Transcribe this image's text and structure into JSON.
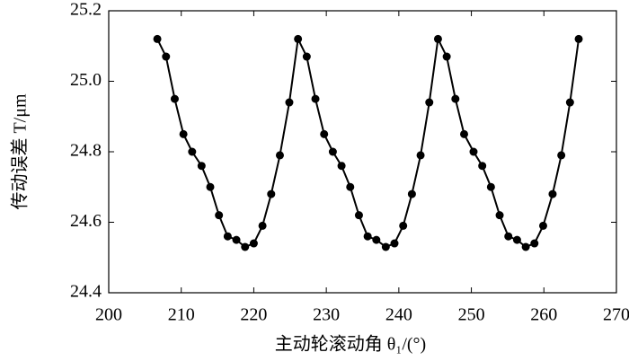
{
  "chart_data": {
    "type": "line",
    "xlabel": "主动轮滚动角 θ₁/(°)",
    "ylabel": "传动误差 T/μm",
    "xlim": [
      200,
      270
    ],
    "xticks": [
      200,
      210,
      220,
      230,
      240,
      250,
      260,
      270
    ],
    "ylim": [
      24.4,
      25.2
    ],
    "yticks": [
      24.4,
      24.6,
      24.8,
      {
        "value": 25.0,
        "label": "25.0"
      },
      25.2
    ],
    "x": [
      206.7,
      207.9,
      209.1,
      210.3,
      211.5,
      212.8,
      214.0,
      215.2,
      216.4,
      217.6,
      218.8,
      220.0,
      221.2,
      222.4,
      223.6,
      224.9,
      226.1,
      227.3,
      228.5,
      229.7,
      230.9,
      232.1,
      233.3,
      234.5,
      235.7,
      236.9,
      238.2,
      239.4,
      240.6,
      241.8,
      243.0,
      244.2,
      245.4,
      246.6,
      247.8,
      249.0,
      250.3,
      251.5,
      252.7,
      253.9,
      255.1,
      256.3,
      257.5,
      258.7,
      259.9,
      261.2,
      262.4,
      263.6,
      264.8
    ],
    "series": [
      {
        "color": "#000000",
        "values": [
          25.12,
          25.07,
          24.95,
          24.85,
          24.8,
          24.76,
          24.7,
          24.62,
          24.56,
          24.55,
          24.53,
          24.54,
          24.59,
          24.68,
          24.79,
          24.94,
          25.12,
          25.07,
          24.95,
          24.85,
          24.8,
          24.76,
          24.7,
          24.62,
          24.56,
          24.55,
          24.53,
          24.54,
          24.59,
          24.68,
          24.79,
          24.94,
          25.12,
          25.07,
          24.95,
          24.85,
          24.8,
          24.76,
          24.7,
          24.62,
          24.56,
          24.55,
          24.53,
          24.54,
          24.59,
          24.68,
          24.79,
          24.94,
          25.12
        ]
      }
    ]
  }
}
